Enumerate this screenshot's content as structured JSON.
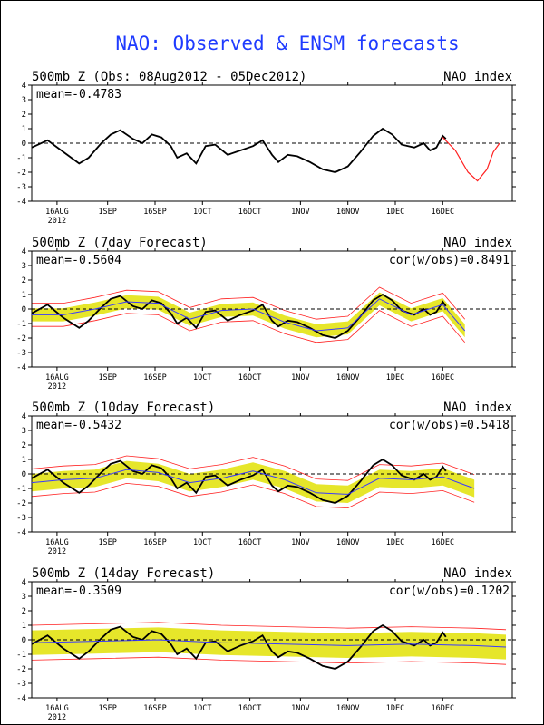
{
  "title": "NAO: Observed & ENSM forecasts",
  "axes": {
    "y_ticks": [
      "4",
      "3",
      "2",
      "1",
      "0",
      "-1",
      "-2",
      "-3",
      "-4"
    ],
    "x_ticks": [
      "16AUG",
      "1SEP",
      "16SEP",
      "1OCT",
      "16OCT",
      "1NOV",
      "16NOV",
      "1DEC",
      "16DEC"
    ],
    "x_year": "2012",
    "ylim": [
      -4,
      4
    ]
  },
  "colors": {
    "observed": "#000000",
    "forecast_members": "#ff2020",
    "ensemble_spread": "#e6e62a",
    "ensemble_mean": "#3a3aff",
    "title": "#1f3bff"
  },
  "panels": [
    {
      "header_left": "500mb Z (Obs: 08Aug2012 - 05Dec2012)",
      "header_right": "NAO index",
      "mean_text": "mean=-0.4783",
      "cor_text": "",
      "has_axis_year": true
    },
    {
      "header_left": "500mb Z (7day Forecast)",
      "header_right": "NAO index",
      "mean_text": "mean=-0.5604",
      "cor_text": "cor(w/obs)=0.8491",
      "has_axis_year": true
    },
    {
      "header_left": "500mb Z (10day Forecast)",
      "header_right": "NAO index",
      "mean_text": "mean=-0.5432",
      "cor_text": "cor(w/obs)=0.5418",
      "has_axis_year": true
    },
    {
      "header_left": "500mb Z (14day Forecast)",
      "header_right": "NAO index",
      "mean_text": "mean=-0.3509",
      "cor_text": "cor(w/obs)=0.1202",
      "has_axis_year": true
    }
  ],
  "chart_data": [
    {
      "type": "line",
      "title": "500mb Z (Obs: 08Aug2012 - 05Dec2012)",
      "ylabel": "NAO index",
      "ylim": [
        -4,
        4
      ],
      "series": [
        {
          "name": "observed",
          "points": [
            [
              0,
              -0.3
            ],
            [
              5,
              0.2
            ],
            [
              10,
              -0.6
            ],
            [
              15,
              -1.4
            ],
            [
              18,
              -1.0
            ],
            [
              22,
              0.0
            ],
            [
              25,
              0.6
            ],
            [
              28,
              0.9
            ],
            [
              32,
              0.3
            ],
            [
              35,
              0.0
            ],
            [
              38,
              0.6
            ],
            [
              41,
              0.4
            ],
            [
              44,
              -0.2
            ],
            [
              46,
              -1.0
            ],
            [
              49,
              -0.7
            ],
            [
              52,
              -1.4
            ],
            [
              55,
              -0.2
            ],
            [
              58,
              -0.1
            ],
            [
              62,
              -0.8
            ],
            [
              66,
              -0.5
            ],
            [
              70,
              -0.2
            ],
            [
              73,
              0.2
            ],
            [
              76,
              -0.8
            ],
            [
              78,
              -1.3
            ],
            [
              81,
              -0.8
            ],
            [
              84,
              -0.9
            ],
            [
              88,
              -1.3
            ],
            [
              92,
              -1.8
            ],
            [
              96,
              -2.0
            ],
            [
              100,
              -1.6
            ],
            [
              104,
              -0.6
            ],
            [
              108,
              0.5
            ],
            [
              111,
              1.0
            ],
            [
              114,
              0.6
            ],
            [
              117,
              -0.1
            ],
            [
              121,
              -0.3
            ],
            [
              124,
              0.0
            ],
            [
              126,
              -0.5
            ],
            [
              128,
              -0.3
            ],
            [
              130,
              0.5
            ],
            [
              131,
              0.3
            ]
          ]
        },
        {
          "name": "forecast members",
          "points": [
            [
              130,
              0.4
            ],
            [
              134,
              -0.5
            ],
            [
              138,
              -2.0
            ],
            [
              141,
              -2.6
            ],
            [
              144,
              -1.8
            ],
            [
              146,
              -0.6
            ],
            [
              148,
              0.0
            ]
          ]
        }
      ]
    },
    {
      "type": "line",
      "title": "500mb Z (7day Forecast)",
      "ylabel": "NAO index",
      "ylim": [
        -4,
        4
      ],
      "series": [
        {
          "name": "observed",
          "points": [
            [
              0,
              -0.3
            ],
            [
              5,
              0.3
            ],
            [
              10,
              -0.6
            ],
            [
              15,
              -1.3
            ],
            [
              18,
              -0.8
            ],
            [
              22,
              0.1
            ],
            [
              25,
              0.7
            ],
            [
              28,
              0.9
            ],
            [
              32,
              0.2
            ],
            [
              35,
              0.0
            ],
            [
              38,
              0.6
            ],
            [
              41,
              0.4
            ],
            [
              44,
              -0.3
            ],
            [
              46,
              -1.0
            ],
            [
              49,
              -0.6
            ],
            [
              52,
              -1.3
            ],
            [
              55,
              -0.2
            ],
            [
              58,
              -0.1
            ],
            [
              62,
              -0.8
            ],
            [
              66,
              -0.4
            ],
            [
              70,
              -0.1
            ],
            [
              73,
              0.3
            ],
            [
              76,
              -0.8
            ],
            [
              78,
              -1.2
            ],
            [
              81,
              -0.8
            ],
            [
              84,
              -0.9
            ],
            [
              88,
              -1.3
            ],
            [
              92,
              -1.8
            ],
            [
              96,
              -2.0
            ],
            [
              100,
              -1.5
            ],
            [
              104,
              -0.5
            ],
            [
              108,
              0.6
            ],
            [
              111,
              1.0
            ],
            [
              114,
              0.6
            ],
            [
              117,
              -0.1
            ],
            [
              121,
              -0.4
            ],
            [
              124,
              0.0
            ],
            [
              126,
              -0.4
            ],
            [
              128,
              -0.2
            ],
            [
              130,
              0.5
            ],
            [
              131,
              0.2
            ]
          ]
        },
        {
          "name": "ensemble mean",
          "points": [
            [
              0,
              -0.4
            ],
            [
              10,
              -0.4
            ],
            [
              20,
              0.0
            ],
            [
              30,
              0.5
            ],
            [
              40,
              0.4
            ],
            [
              50,
              -0.7
            ],
            [
              60,
              -0.1
            ],
            [
              70,
              0.0
            ],
            [
              80,
              -0.9
            ],
            [
              90,
              -1.5
            ],
            [
              100,
              -1.3
            ],
            [
              110,
              0.7
            ],
            [
              120,
              -0.4
            ],
            [
              130,
              0.3
            ],
            [
              137,
              -1.5
            ]
          ]
        }
      ]
    },
    {
      "type": "line",
      "title": "500mb Z (10day Forecast)",
      "ylabel": "NAO index",
      "ylim": [
        -4,
        4
      ],
      "series": [
        {
          "name": "observed",
          "points": [
            [
              0,
              -0.3
            ],
            [
              5,
              0.3
            ],
            [
              10,
              -0.6
            ],
            [
              15,
              -1.3
            ],
            [
              18,
              -0.8
            ],
            [
              22,
              0.1
            ],
            [
              25,
              0.7
            ],
            [
              28,
              0.9
            ],
            [
              32,
              0.2
            ],
            [
              35,
              0.0
            ],
            [
              38,
              0.6
            ],
            [
              41,
              0.4
            ],
            [
              44,
              -0.3
            ],
            [
              46,
              -1.0
            ],
            [
              49,
              -0.6
            ],
            [
              52,
              -1.3
            ],
            [
              55,
              -0.2
            ],
            [
              58,
              -0.1
            ],
            [
              62,
              -0.8
            ],
            [
              66,
              -0.4
            ],
            [
              70,
              -0.1
            ],
            [
              73,
              0.3
            ],
            [
              76,
              -0.8
            ],
            [
              78,
              -1.2
            ],
            [
              81,
              -0.8
            ],
            [
              84,
              -0.9
            ],
            [
              88,
              -1.3
            ],
            [
              92,
              -1.8
            ],
            [
              96,
              -2.0
            ],
            [
              100,
              -1.5
            ],
            [
              104,
              -0.5
            ],
            [
              108,
              0.6
            ],
            [
              111,
              1.0
            ],
            [
              114,
              0.6
            ],
            [
              117,
              -0.1
            ],
            [
              121,
              -0.4
            ],
            [
              124,
              0.0
            ],
            [
              126,
              -0.4
            ],
            [
              128,
              -0.2
            ],
            [
              130,
              0.5
            ],
            [
              131,
              0.2
            ]
          ]
        },
        {
          "name": "ensemble mean",
          "points": [
            [
              0,
              -0.6
            ],
            [
              10,
              -0.4
            ],
            [
              20,
              -0.3
            ],
            [
              30,
              0.3
            ],
            [
              40,
              0.1
            ],
            [
              50,
              -0.6
            ],
            [
              60,
              -0.3
            ],
            [
              70,
              0.2
            ],
            [
              80,
              -0.4
            ],
            [
              90,
              -1.3
            ],
            [
              100,
              -1.4
            ],
            [
              110,
              -0.3
            ],
            [
              120,
              -0.4
            ],
            [
              130,
              -0.2
            ],
            [
              140,
              -1.0
            ]
          ]
        }
      ]
    },
    {
      "type": "line",
      "title": "500mb Z (14day Forecast)",
      "ylabel": "NAO index",
      "ylim": [
        -4,
        4
      ],
      "series": [
        {
          "name": "observed",
          "points": [
            [
              0,
              -0.3
            ],
            [
              5,
              0.3
            ],
            [
              10,
              -0.6
            ],
            [
              15,
              -1.3
            ],
            [
              18,
              -0.8
            ],
            [
              22,
              0.1
            ],
            [
              25,
              0.7
            ],
            [
              28,
              0.9
            ],
            [
              32,
              0.2
            ],
            [
              35,
              0.0
            ],
            [
              38,
              0.6
            ],
            [
              41,
              0.4
            ],
            [
              44,
              -0.3
            ],
            [
              46,
              -1.0
            ],
            [
              49,
              -0.6
            ],
            [
              52,
              -1.3
            ],
            [
              55,
              -0.2
            ],
            [
              58,
              -0.1
            ],
            [
              62,
              -0.8
            ],
            [
              66,
              -0.4
            ],
            [
              70,
              -0.1
            ],
            [
              73,
              0.3
            ],
            [
              76,
              -0.8
            ],
            [
              78,
              -1.2
            ],
            [
              81,
              -0.8
            ],
            [
              84,
              -0.9
            ],
            [
              88,
              -1.3
            ],
            [
              92,
              -1.8
            ],
            [
              96,
              -2.0
            ],
            [
              100,
              -1.5
            ],
            [
              104,
              -0.5
            ],
            [
              108,
              0.6
            ],
            [
              111,
              1.0
            ],
            [
              114,
              0.6
            ],
            [
              117,
              -0.1
            ],
            [
              121,
              -0.4
            ],
            [
              124,
              0.0
            ],
            [
              126,
              -0.4
            ],
            [
              128,
              -0.2
            ],
            [
              130,
              0.5
            ],
            [
              131,
              0.2
            ]
          ]
        },
        {
          "name": "ensemble mean",
          "points": [
            [
              0,
              -0.2
            ],
            [
              20,
              -0.1
            ],
            [
              40,
              0.0
            ],
            [
              60,
              -0.2
            ],
            [
              80,
              -0.3
            ],
            [
              100,
              -0.4
            ],
            [
              120,
              -0.3
            ],
            [
              140,
              -0.4
            ],
            [
              150,
              -0.5
            ]
          ]
        }
      ]
    }
  ]
}
